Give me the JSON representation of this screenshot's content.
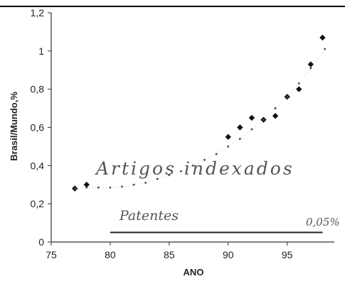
{
  "chart_data": {
    "type": "scatter",
    "xlabel": "ANO",
    "ylabel": "Brasil/Mundo,%",
    "xlim": [
      75,
      99
    ],
    "ylim": [
      0,
      1.2
    ],
    "x_ticks": [
      "75",
      "80",
      "85",
      "90",
      "95"
    ],
    "y_ticks": [
      "0",
      "0,2",
      "0,4",
      "0,6",
      "0,8",
      "1",
      "1,2"
    ],
    "grid": false,
    "annotations": {
      "series_label_articles": "Artigos indexados",
      "series_label_patents": "Patentes",
      "patent_value_label": "0,05%"
    },
    "series": [
      {
        "name": "Artigos indexados",
        "kind": "points",
        "x": [
          77,
          78,
          90,
          91,
          92,
          93,
          94,
          95,
          96,
          97,
          98
        ],
        "y": [
          0.28,
          0.3,
          0.55,
          0.6,
          0.65,
          0.64,
          0.66,
          0.76,
          0.8,
          0.93,
          1.07
        ]
      },
      {
        "name": "Artigos indexados",
        "kind": "trend",
        "x": [
          77,
          78,
          79,
          80,
          81,
          82,
          83,
          84,
          85,
          86,
          87,
          88,
          89,
          90,
          91,
          92,
          93,
          94,
          95,
          96,
          97,
          98.2
        ],
        "y": [
          0.28,
          0.285,
          0.285,
          0.285,
          0.29,
          0.3,
          0.31,
          0.33,
          0.35,
          0.37,
          0.4,
          0.43,
          0.46,
          0.5,
          0.54,
          0.59,
          0.64,
          0.7,
          0.76,
          0.83,
          0.91,
          1.01
        ]
      },
      {
        "name": "Patentes",
        "kind": "line",
        "x": [
          80,
          98
        ],
        "y": [
          0.05,
          0.05
        ]
      }
    ]
  }
}
